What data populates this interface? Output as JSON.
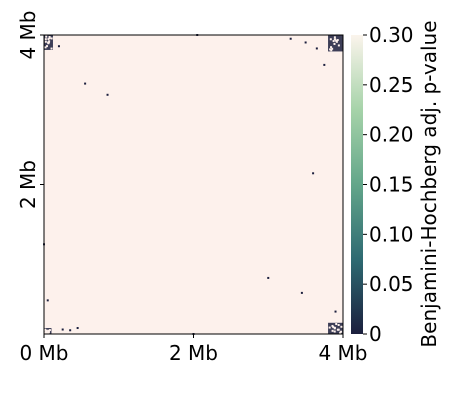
{
  "chart_data": {
    "type": "heatmap",
    "title": "",
    "x_ticks": [
      {
        "value": 0,
        "label": "0 Mb"
      },
      {
        "value": 2,
        "label": "2 Mb"
      },
      {
        "value": 4,
        "label": "4 Mb"
      }
    ],
    "y_ticks": [
      {
        "value": 2,
        "label": "2 Mb"
      },
      {
        "value": 4,
        "label": "4 Mb"
      }
    ],
    "x_range": [
      0,
      4
    ],
    "y_range": [
      0,
      4
    ],
    "colorbar": {
      "label": "Benjamini-Hochberg adj. p-value",
      "range": [
        0,
        0.3
      ],
      "ticks": [
        {
          "value": 0,
          "label": "0"
        },
        {
          "value": 0.05,
          "label": "0.05"
        },
        {
          "value": 0.1,
          "label": "0.10"
        },
        {
          "value": 0.15,
          "label": "0.15"
        },
        {
          "value": 0.2,
          "label": "0.20"
        },
        {
          "value": 0.25,
          "label": "0.25"
        },
        {
          "value": 0.3,
          "label": "0.30"
        }
      ],
      "colors": [
        "#1b1f3d",
        "#2e6a72",
        "#63a68a",
        "#a6d3a9",
        "#fbf4ec"
      ]
    },
    "background_value": 0.3,
    "background_color": "#fdf1ec",
    "significant_regions": [
      {
        "x": [
          0.0,
          0.12
        ],
        "y": [
          3.8,
          4.0
        ]
      },
      {
        "x": [
          3.8,
          4.0
        ],
        "y": [
          3.78,
          4.0
        ]
      },
      {
        "x": [
          3.8,
          4.0
        ],
        "y": [
          0.0,
          0.15
        ]
      },
      {
        "x": [
          0.0,
          0.1
        ],
        "y": [
          0.0,
          0.08
        ]
      }
    ],
    "scatter_points": [
      [
        0.55,
        3.35
      ],
      [
        0.85,
        3.2
      ],
      [
        2.05,
        4.0
      ],
      [
        3.3,
        3.95
      ],
      [
        3.5,
        3.9
      ],
      [
        3.75,
        3.6
      ],
      [
        3.0,
        0.75
      ],
      [
        3.45,
        0.55
      ],
      [
        0.25,
        0.06
      ],
      [
        0.35,
        0.05
      ],
      [
        0.45,
        0.08
      ],
      [
        0.05,
        0.45
      ],
      [
        3.6,
        2.15
      ],
      [
        2.0,
        0.0
      ],
      [
        3.9,
        0.3
      ],
      [
        0.2,
        3.85
      ],
      [
        3.65,
        3.82
      ],
      [
        0.0,
        1.2
      ]
    ],
    "grid": false,
    "legend": "none"
  }
}
